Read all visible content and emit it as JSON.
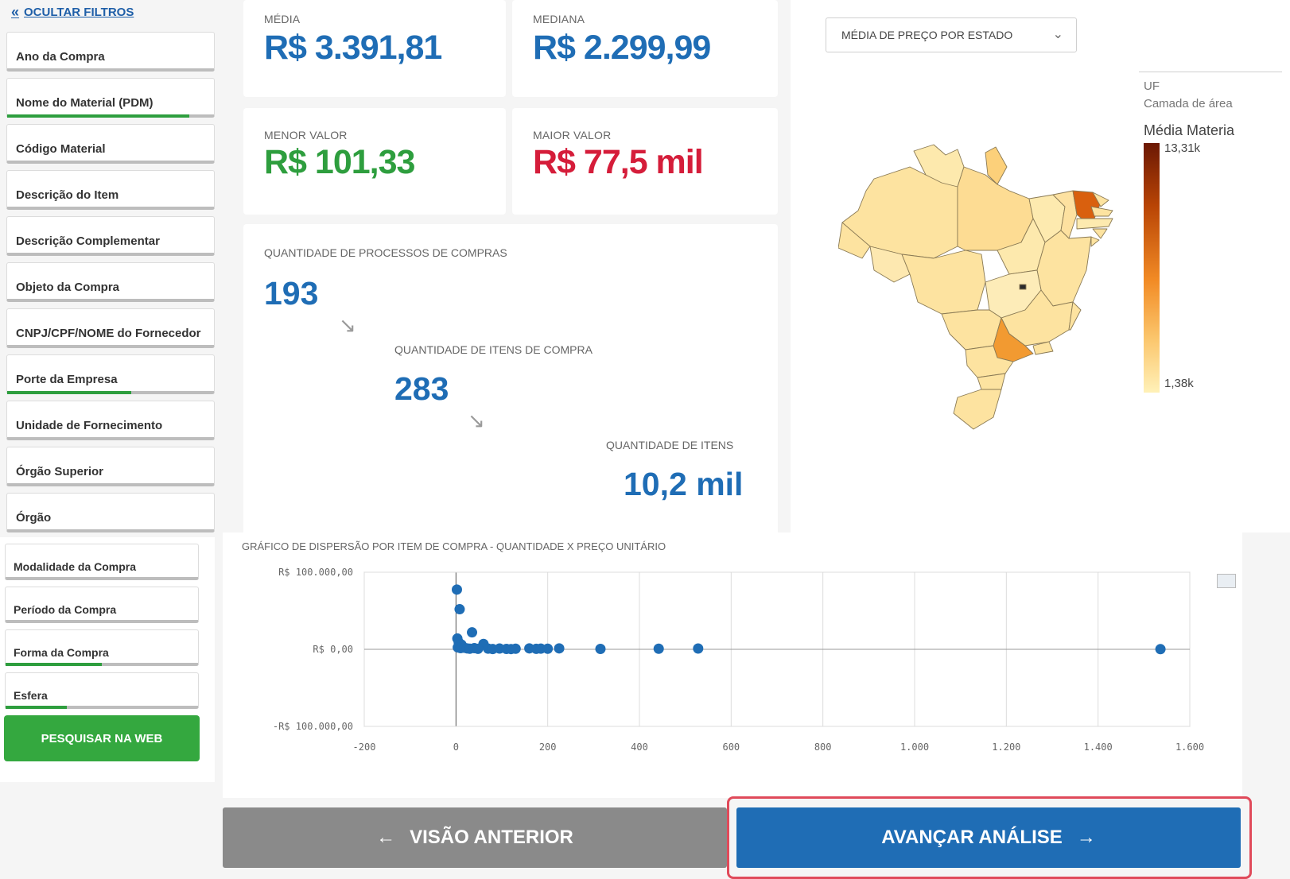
{
  "sidebar": {
    "hide_filters_label": "OCULTAR FILTROS",
    "filters": [
      {
        "label": "Ano da Compra",
        "progress": 0
      },
      {
        "label": "Nome do Material (PDM)",
        "progress": 0.88
      },
      {
        "label": "Código Material",
        "progress": 0
      },
      {
        "label": "Descrição do Item",
        "progress": 0
      },
      {
        "label": "Descrição Complementar",
        "progress": 0
      },
      {
        "label": "Objeto da Compra",
        "progress": 0
      },
      {
        "label": "CNPJ/CPF/NOME do Fornecedor",
        "progress": 0
      },
      {
        "label": "Porte da Empresa",
        "progress": 0.6
      },
      {
        "label": "Unidade de Fornecimento",
        "progress": 0
      },
      {
        "label": "Órgão Superior",
        "progress": 0
      },
      {
        "label": "Órgão",
        "progress": 0
      }
    ],
    "filters2": [
      {
        "label": "Modalidade da Compra",
        "progress": 0
      },
      {
        "label": "Período da Compra",
        "progress": 0
      },
      {
        "label": "Forma da Compra",
        "progress": 0.5
      },
      {
        "label": "Esfera",
        "progress": 0.32
      }
    ],
    "search_button": "PESQUISAR NA WEB"
  },
  "kpis": {
    "media": {
      "label": "MÉDIA",
      "value": "R$ 3.391,81"
    },
    "mediana": {
      "label": "MEDIANA",
      "value": "R$ 2.299,99"
    },
    "menor": {
      "label": "MENOR VALOR",
      "value": "R$ 101,33"
    },
    "maior": {
      "label": "MAIOR VALOR",
      "value": "R$ 77,5 mil"
    }
  },
  "funnel": {
    "processos": {
      "label": "QUANTIDADE DE PROCESSOS DE COMPRAS",
      "value": "193"
    },
    "itens_compra": {
      "label": "QUANTIDADE DE ITENS DE COMPRA",
      "value": "283"
    },
    "itens": {
      "label": "QUANTIDADE DE ITENS",
      "value": "10,2 mil"
    }
  },
  "map": {
    "select_value": "MÉDIA DE PREÇO POR ESTADO",
    "legend_uf": "UF",
    "legend_layer": "Camada de área",
    "legend_title": "Média Materia",
    "legend_max": "13,31k",
    "legend_min": "1,38k"
  },
  "chart_data": {
    "type": "scatter",
    "title": "GRÁFICO DE DISPERSÃO POR ITEM DE COMPRA - QUANTIDADE X PREÇO UNITÁRIO",
    "xlim": [
      -200,
      1600
    ],
    "ylim": [
      -100000,
      100000
    ],
    "x_ticks": [
      "-200",
      "0",
      "200",
      "400",
      "600",
      "800",
      "1.000",
      "1.200",
      "1.400",
      "1.600"
    ],
    "y_ticks": [
      "R$ 100.000,00",
      "R$ 0,00",
      "-R$ 100.000,00"
    ],
    "grid": true,
    "points": [
      {
        "x": 2,
        "y": 77500
      },
      {
        "x": 8,
        "y": 52000
      },
      {
        "x": 35,
        "y": 22000
      },
      {
        "x": 3,
        "y": 14000
      },
      {
        "x": 6,
        "y": 9000
      },
      {
        "x": 12,
        "y": 6000
      },
      {
        "x": 60,
        "y": 7000
      },
      {
        "x": 4,
        "y": 2500
      },
      {
        "x": 10,
        "y": 1500
      },
      {
        "x": 18,
        "y": 2000
      },
      {
        "x": 24,
        "y": 1200
      },
      {
        "x": 30,
        "y": 800
      },
      {
        "x": 40,
        "y": 1500
      },
      {
        "x": 48,
        "y": 600
      },
      {
        "x": 70,
        "y": 900
      },
      {
        "x": 80,
        "y": 400
      },
      {
        "x": 95,
        "y": 1000
      },
      {
        "x": 110,
        "y": 500
      },
      {
        "x": 120,
        "y": 300
      },
      {
        "x": 130,
        "y": 800
      },
      {
        "x": 160,
        "y": 1200
      },
      {
        "x": 175,
        "y": 600
      },
      {
        "x": 185,
        "y": 900
      },
      {
        "x": 200,
        "y": 800
      },
      {
        "x": 225,
        "y": 1200
      },
      {
        "x": 315,
        "y": 500
      },
      {
        "x": 442,
        "y": 800
      },
      {
        "x": 528,
        "y": 1000
      },
      {
        "x": 1536,
        "y": 200
      }
    ]
  },
  "nav": {
    "prev_label": "VISÃO ANTERIOR",
    "next_label": "AVANÇAR ANÁLISE"
  },
  "colors": {
    "accent_blue": "#1f6db5",
    "green": "#2e9e3e",
    "red": "#d51d3a",
    "point": "#1f6db5",
    "map_light": "#fde9a8",
    "map_mid": "#f6a53c",
    "map_dark": "#d9600e"
  }
}
